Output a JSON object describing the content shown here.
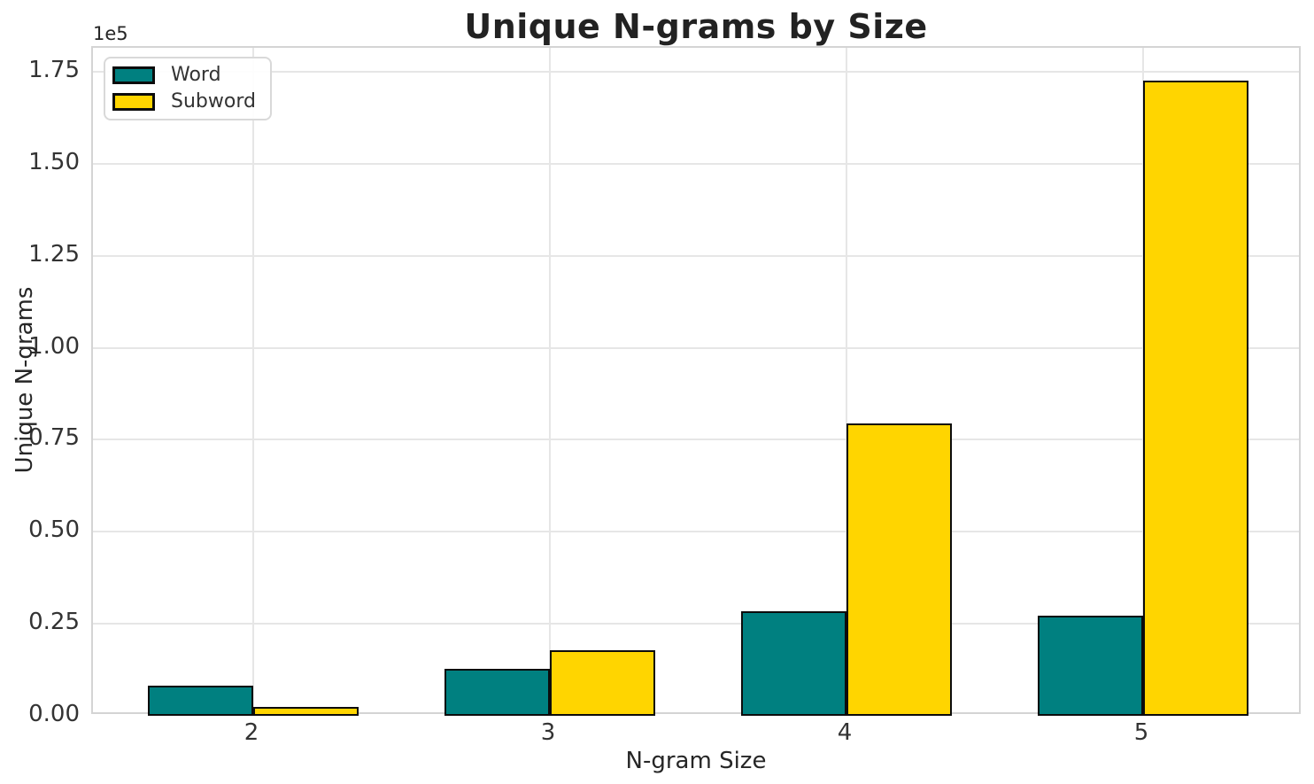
{
  "chart_data": {
    "type": "bar",
    "title": "Unique N-grams by Size",
    "xlabel": "N-gram Size",
    "ylabel": "Unique N-grams",
    "y_offset_label": "1e5",
    "categories": [
      "2",
      "3",
      "4",
      "5"
    ],
    "series": [
      {
        "name": "Word",
        "color": "#008080",
        "values": [
          8200,
          12800,
          28400,
          27200
        ]
      },
      {
        "name": "Subword",
        "color": "#FFD500",
        "values": [
          2400,
          17900,
          79500,
          172500
        ]
      }
    ],
    "bar_edge_color": "#0c0c0c",
    "ylim": [
      0,
      181500
    ],
    "y_ticks": [
      0,
      25000,
      50000,
      75000,
      100000,
      125000,
      150000,
      175000
    ],
    "y_tick_labels": [
      "0.00",
      "0.25",
      "0.50",
      "0.75",
      "1.00",
      "1.25",
      "1.50",
      "1.75"
    ],
    "grid": true,
    "legend_position": "upper left",
    "colors": {
      "grid": "#e6e6e6",
      "spine": "#d4d4d4",
      "title_text": "#222222",
      "tick_text": "#333333"
    }
  }
}
